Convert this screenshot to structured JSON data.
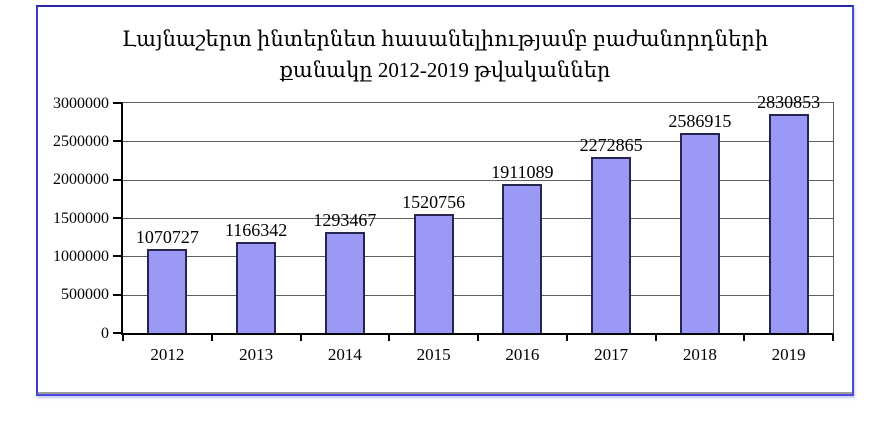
{
  "chart_data": {
    "type": "bar",
    "title_line1": "Լայնաշերտ ինտերնետ հասանելիությամբ բաժանորդների",
    "title_line2": "քանակը 2012-2019 թվականներ",
    "categories": [
      "2012",
      "2013",
      "2014",
      "2015",
      "2016",
      "2017",
      "2018",
      "2019"
    ],
    "values": [
      1070727,
      1166342,
      1293467,
      1520756,
      1911089,
      2272865,
      2586915,
      2830853
    ],
    "value_labels": [
      "1070727",
      "1166342",
      "1293467",
      "1520756",
      "1911089",
      "2272865",
      "2586915",
      "2830853"
    ],
    "y_tick_values": [
      0,
      500000,
      1000000,
      1500000,
      2000000,
      2500000,
      3000000
    ],
    "y_tick_labels": [
      "0",
      "500000",
      "1000000",
      "1500000",
      "2000000",
      "2500000",
      "3000000"
    ],
    "ylim": [
      0,
      3000000
    ],
    "xlabel": "",
    "ylabel": "",
    "grid": true,
    "legend": "none",
    "colors": {
      "bar_fill": "#9a9af6",
      "bar_border": "#26264f",
      "gridline": "#5f5f5f",
      "axis": "#000000",
      "frame_border": "#4a4ad8",
      "background": "#ffffff",
      "text": "#000000"
    }
  }
}
